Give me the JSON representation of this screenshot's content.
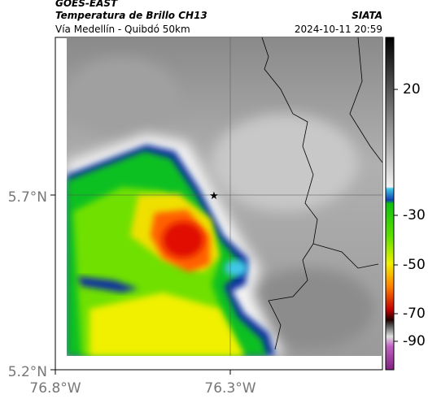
{
  "header": {
    "satellite": "GOES-EAST",
    "product": "Temperatura de Brillo CH13",
    "source": "SIATA",
    "route": "Vía Medellín - Quibdó 50km",
    "timestamp": "2024-10-11 20:59"
  },
  "map": {
    "lat_labels": [
      "5.7°N",
      "5.2°N"
    ],
    "lon_labels": [
      "76.8°W",
      "76.3°W"
    ]
  },
  "colorbar": {
    "ticks": [
      20,
      -30,
      -50,
      -70,
      -90
    ]
  }
}
